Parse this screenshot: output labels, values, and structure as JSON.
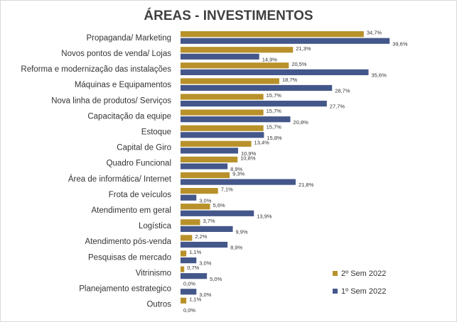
{
  "chart_data": {
    "type": "bar",
    "orientation": "horizontal",
    "title": "ÁREAS - INVESTIMENTOS",
    "categories": [
      "Propaganda/ Marketing",
      "Novos pontos de venda/ Lojas",
      "Reforma e modernização das instalações",
      "Máquinas e Equipamentos",
      "Nova linha de produtos/ Serviços",
      "Capacitação da equipe",
      "Estoque",
      "Capital de Giro",
      "Quadro Funcional",
      "Área de informática/ Internet",
      "Frota de veículos",
      "Atendimento em geral",
      "Logística",
      "Atendimento pós-venda",
      "Pesquisas de mercado",
      "Vitrinismo",
      "Planejamento estrategico",
      "Outros"
    ],
    "series": [
      {
        "name": "2º Sem 2022",
        "color": "#b8912a",
        "values": [
          34.7,
          21.3,
          20.5,
          18.7,
          15.7,
          15.7,
          15.7,
          13.4,
          10.8,
          9.3,
          7.1,
          5.6,
          3.7,
          2.2,
          1.1,
          0.7,
          0.0,
          1.1
        ],
        "labels": [
          "34,7%",
          "21,3%",
          "20,5%",
          "18,7%",
          "15,7%",
          "15,7%",
          "15,7%",
          "13,4%",
          "10,8%",
          "9,3%",
          "7,1%",
          "5,6%",
          "3,7%",
          "2,2%",
          "1,1%",
          "0,7%",
          "0,0%",
          "1,1%"
        ]
      },
      {
        "name": "1º Sem 2022",
        "color": "#44578a",
        "values": [
          39.6,
          14.9,
          35.6,
          28.7,
          27.7,
          20.8,
          15.8,
          10.9,
          8.9,
          21.8,
          3.0,
          13.9,
          9.9,
          8.9,
          3.0,
          5.0,
          3.0,
          0.0
        ],
        "labels": [
          "39,6%",
          "14,9%",
          "35,6%",
          "28,7%",
          "27,7%",
          "20,8%",
          "15,8%",
          "10,9%",
          "8,9%",
          "21,8%",
          "3,0%",
          "13,9%",
          "9,9%",
          "8,9%",
          "3,0%",
          "5,0%",
          "3,0%",
          "0,0%"
        ]
      }
    ],
    "xlim": [
      0,
      40
    ],
    "grid": false,
    "axes_visible": false,
    "legend_position": "bottom-right"
  }
}
